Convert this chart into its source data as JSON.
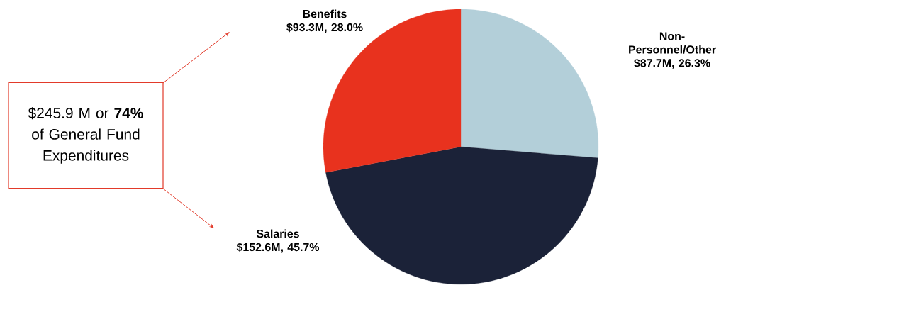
{
  "chart_data": {
    "type": "pie",
    "categories": [
      "Non-Personnel/Other",
      "Salaries",
      "Benefits"
    ],
    "values": [
      26.3,
      45.7,
      28.0
    ],
    "value_labels": [
      "$87.7M, 26.3%",
      "$152.6M, 45.7%",
      "$93.3M, 28.0%"
    ],
    "colors": [
      "#b3cfd9",
      "#1b2238",
      "#e8321e"
    ],
    "annotations": [
      "$245.9 M or **74%** of General Fund Expenditures"
    ]
  }
}
